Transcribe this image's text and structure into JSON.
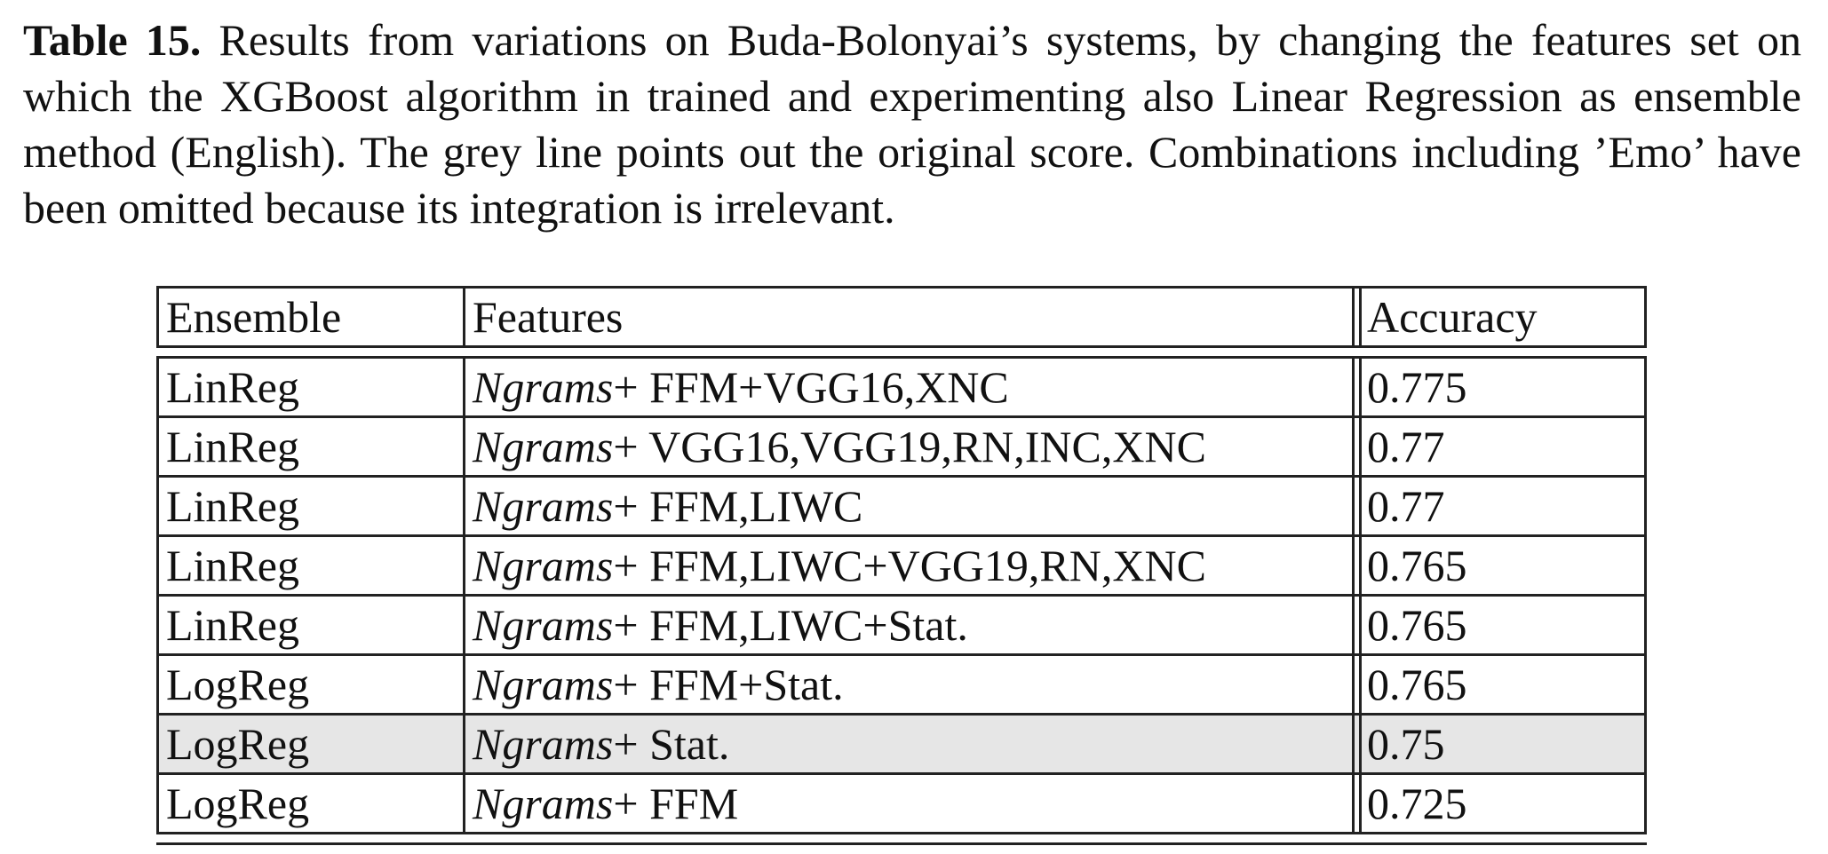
{
  "caption": {
    "label": "Table 15.",
    "text": " Results from variations on Buda-Bolonyai’s systems, by changing the features set on which the XGBoost algorithm in trained and experimenting also Linear Regression as ensemble method (English). The grey line points out the original score. Combinations including ’Emo’ have been omitted because its integration is irrelevant."
  },
  "table": {
    "headers": [
      "Ensemble",
      "Features",
      "Accuracy"
    ],
    "rows": [
      {
        "ensemble": "LinReg",
        "ngrams": "Ngrams",
        "plus": "+",
        "features": " FFM+VGG16,XNC",
        "accuracy": "0.775"
      },
      {
        "ensemble": "LinReg",
        "ngrams": "Ngrams",
        "plus": "+",
        "features": " VGG16,VGG19,RN,INC,XNC",
        "accuracy": "0.77"
      },
      {
        "ensemble": "LinReg",
        "ngrams": "Ngrams",
        "plus": "+",
        "features": " FFM,LIWC",
        "accuracy": "0.77"
      },
      {
        "ensemble": "LinReg",
        "ngrams": "Ngrams",
        "plus": "+",
        "features": " FFM,LIWC+VGG19,RN,XNC",
        "accuracy": "0.765"
      },
      {
        "ensemble": "LinReg",
        "ngrams": "Ngrams",
        "plus": "+",
        "features": " FFM,LIWC+Stat.",
        "accuracy": "0.765"
      },
      {
        "ensemble": "LogReg",
        "ngrams": "Ngrams",
        "plus": "+",
        "features": " FFM+Stat.",
        "accuracy": "0.765"
      },
      {
        "ensemble": "LogReg",
        "ngrams": "Ngrams",
        "plus": "+",
        "features": " Stat.",
        "accuracy": "0.75"
      },
      {
        "ensemble": "LogReg",
        "ngrams": "Ngrams",
        "plus": "+",
        "features": " FFM",
        "accuracy": "0.725"
      }
    ],
    "highlight_row_index": 6,
    "highlight_color": "#e6e6e6"
  }
}
